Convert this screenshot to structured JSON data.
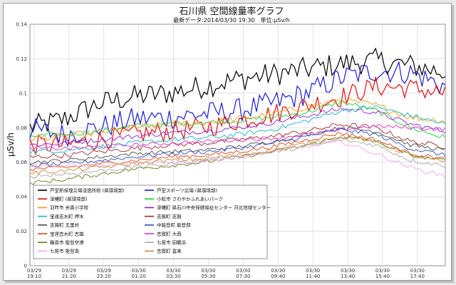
{
  "chart_data": {
    "type": "line",
    "title": "石川県 空間線量率グラフ",
    "subtitle": "最新データ:2014/03/30 19:30　単位:μSv/h",
    "ylabel": "μSv/h",
    "xlabel": "",
    "ylim": [
      0,
      0.14
    ],
    "yticks": [
      "0",
      "0.02",
      "0.04",
      "0.06",
      "0.08",
      "0.1",
      "0.12",
      "0.14"
    ],
    "x_ticks": [
      {
        "date": "03/29",
        "time": "19:10"
      },
      {
        "date": "03/29",
        "time": "21:20"
      },
      {
        "date": "03/29",
        "time": "23:20"
      },
      {
        "date": "03/30",
        "time": "01:20"
      },
      {
        "date": "03/30",
        "time": "03:30"
      },
      {
        "date": "03/30",
        "time": "05:30"
      },
      {
        "date": "03/30",
        "time": "07:30"
      },
      {
        "date": "03/30",
        "time": "09:40"
      },
      {
        "date": "03/30",
        "time": "11:40"
      },
      {
        "date": "03/30",
        "time": "13:40"
      },
      {
        "date": "03/30",
        "time": "15:40"
      },
      {
        "date": "03/30",
        "time": "17:40"
      }
    ],
    "grid": true,
    "legend_position": "lower-left",
    "series": [
      {
        "name": "戸室新保埋立場浸透所前 (県環境部)",
        "color": "#000000",
        "anchors": [
          0.08,
          0.085,
          0.094,
          0.098,
          0.1,
          0.104,
          0.108,
          0.111,
          0.114,
          0.117,
          0.119,
          0.116,
          0.112
        ],
        "noise": 0.007
      },
      {
        "name": "戸室スポーツ広場 (県環境部)",
        "color": "#1a1ad6",
        "anchors": [
          0.079,
          0.076,
          0.08,
          0.085,
          0.086,
          0.088,
          0.09,
          0.094,
          0.1,
          0.109,
          0.113,
          0.112,
          0.104
        ],
        "noise": 0.007
      },
      {
        "name": "津幡町 (県環境部)",
        "color": "#e01010",
        "anchors": [
          0.07,
          0.07,
          0.073,
          0.076,
          0.078,
          0.08,
          0.084,
          0.088,
          0.093,
          0.098,
          0.104,
          0.103,
          0.1
        ],
        "noise": 0.006
      },
      {
        "name": "小松市 さわやかふれあいパーク",
        "color": "#22c93b",
        "anchors": [
          0.075,
          0.076,
          0.078,
          0.081,
          0.082,
          0.083,
          0.084,
          0.086,
          0.089,
          0.095,
          0.09,
          0.08,
          0.074
        ],
        "noise": 0.0015
      },
      {
        "name": "羽咋市 余喜小学校",
        "color": "#f29a1c",
        "anchors": [
          0.074,
          0.075,
          0.077,
          0.08,
          0.082,
          0.083,
          0.085,
          0.088,
          0.092,
          0.096,
          0.093,
          0.086,
          0.084
        ],
        "noise": 0.002
      },
      {
        "name": "津幡町 県石川中央保健福祉センター 河北地域センター",
        "color": "#8a1fd0",
        "anchors": [
          0.07,
          0.071,
          0.073,
          0.075,
          0.077,
          0.078,
          0.08,
          0.083,
          0.087,
          0.091,
          0.089,
          0.082,
          0.078
        ],
        "noise": 0.0015
      },
      {
        "name": "宝達志水町 押水",
        "color": "#12b7c9",
        "anchors": [
          0.066,
          0.067,
          0.069,
          0.071,
          0.073,
          0.074,
          0.076,
          0.079,
          0.084,
          0.09,
          0.092,
          0.087,
          0.082
        ],
        "noise": 0.0015
      },
      {
        "name": "志賀町 志賀",
        "color": "#9e2a2a",
        "anchors": [
          0.063,
          0.064,
          0.066,
          0.068,
          0.07,
          0.071,
          0.073,
          0.075,
          0.078,
          0.082,
          0.08,
          0.072,
          0.069
        ],
        "noise": 0.0015
      },
      {
        "name": "志賀町 五里峠",
        "color": "#4a4a4a",
        "anchors": [
          0.06,
          0.061,
          0.063,
          0.065,
          0.066,
          0.067,
          0.069,
          0.072,
          0.076,
          0.08,
          0.078,
          0.07,
          0.067
        ],
        "noise": 0.0012
      },
      {
        "name": "中能登町 能登部",
        "color": "#2d4fbf",
        "anchors": [
          0.058,
          0.059,
          0.061,
          0.063,
          0.065,
          0.066,
          0.068,
          0.071,
          0.075,
          0.079,
          0.076,
          0.068,
          0.064
        ],
        "noise": 0.0012
      },
      {
        "name": "宝達志水町 志雄",
        "color": "#e0461a",
        "anchors": [
          0.056,
          0.057,
          0.059,
          0.061,
          0.063,
          0.064,
          0.066,
          0.069,
          0.073,
          0.077,
          0.073,
          0.065,
          0.062
        ],
        "noise": 0.0012
      },
      {
        "name": "志賀町 大西",
        "color": "#e030d0",
        "anchors": [
          0.068,
          0.068,
          0.069,
          0.07,
          0.071,
          0.072,
          0.073,
          0.074,
          0.076,
          0.079,
          0.081,
          0.08,
          0.079
        ],
        "noise": 0.0012
      },
      {
        "name": "輪島市 能登空港",
        "color": "#6b7a10",
        "anchors": [
          0.048,
          0.05,
          0.053,
          0.056,
          0.058,
          0.06,
          0.063,
          0.066,
          0.07,
          0.075,
          0.072,
          0.064,
          0.061
        ],
        "noise": 0.0012
      },
      {
        "name": "七尾市 田鶴浜",
        "color": "#a8a8a8",
        "anchors": [
          0.052,
          0.053,
          0.055,
          0.057,
          0.059,
          0.061,
          0.063,
          0.066,
          0.069,
          0.073,
          0.07,
          0.061,
          0.058
        ],
        "noise": 0.0012
      },
      {
        "name": "七尾市 能登島",
        "color": "#f2a8e6",
        "anchors": [
          0.058,
          0.058,
          0.058,
          0.059,
          0.06,
          0.061,
          0.063,
          0.066,
          0.069,
          0.072,
          0.065,
          0.057,
          0.052
        ],
        "noise": 0.0012
      },
      {
        "name": "志賀町 富来",
        "color": "#c98a3a",
        "anchors": [
          0.054,
          0.055,
          0.057,
          0.059,
          0.061,
          0.062,
          0.064,
          0.067,
          0.071,
          0.075,
          0.072,
          0.064,
          0.06
        ],
        "noise": 0.0012
      }
    ]
  }
}
